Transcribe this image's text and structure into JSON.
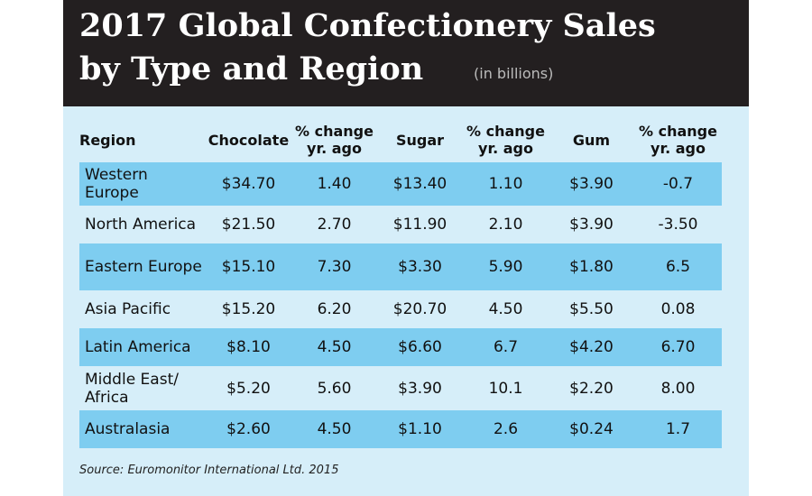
{
  "header": {
    "title_lines": [
      "2017 Global Confectionery Sales",
      "by Type and Region"
    ],
    "note": "(in billions)"
  },
  "table": {
    "columns": [
      "Region",
      "Chocolate",
      "% change yr. ago",
      "Sugar",
      "% change yr. ago",
      "Gum",
      "% change yr. ago"
    ],
    "rows": [
      [
        "Western Europe",
        "$34.70",
        "1.40",
        "$13.40",
        "1.10",
        "$3.90",
        "-0.7"
      ],
      [
        "North America",
        "$21.50",
        "2.70",
        "$11.90",
        "2.10",
        "$3.90",
        "-3.50"
      ],
      [
        "Eastern Europe",
        "$15.10",
        "7.30",
        "$3.30",
        "5.90",
        "$1.80",
        "6.5"
      ],
      [
        "Asia Pacific",
        "$15.20",
        "6.20",
        "$20.70",
        "4.50",
        "$5.50",
        "0.08"
      ],
      [
        "Latin America",
        "$8.10",
        "4.50",
        "$6.60",
        "6.7",
        "$4.20",
        "6.70"
      ],
      [
        "Middle East/ Africa",
        "$5.20",
        "5.60",
        "$3.90",
        "10.1",
        "$2.20",
        "8.00"
      ],
      [
        "Australasia",
        "$2.60",
        "4.50",
        "$1.10",
        "2.6",
        "$0.24",
        "1.7"
      ]
    ]
  },
  "source": "Source: Euromonitor International Ltd. 2015"
}
